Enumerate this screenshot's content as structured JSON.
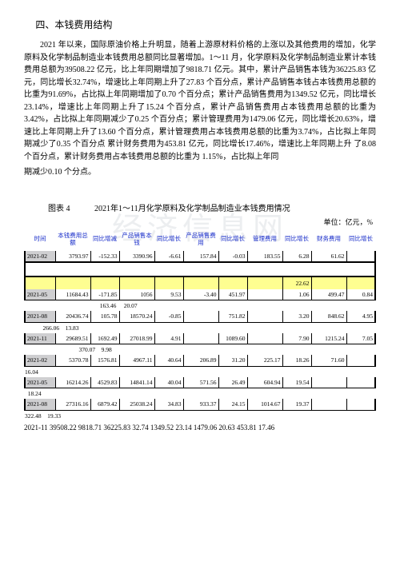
{
  "section_title": "四、本钱费用结构",
  "paragraph": "2021 年以来，国际原油价格上升明显，随着上游原材料价格的上涨以及其他费用的增加，化学原料及化学制品制造业本钱费用总额同比显著增加。1～11 月，化学原料及化学制品制造业累计本钱费用总额为39508.22 亿元，比上年同期增加了9818.71 亿元。其中，累计产品销售本钱为36225.83 亿元，同比增长32.74%，增速比上年同期上升了27.83 个百分点，累计产品销售本钱占本钱费用总额的比重为91.69%，占比拟上年同期增加了0.70 个百分点；累计产品销售费用为1349.52 亿元，同比增长 23.14%，增速比上年同期上升了15.24 个百分点，累计产品销售费用占本钱费用总额的比重为3.42%，占比拟上年同期减少了0.25 个百分点；累计管理费用为1479.06 亿元，同比增长20.63%，增速比上年同期上升了13.60 个百分点，累计管理费用占本钱费用总额的比重为3.74%，占比拟上年同期减少了0.35 个百分点 累计财务费用为453.81 亿元，同比增长17.46%，增速比上年同期上升 了8.08 个百分点，累计财务费用占本钱费用总额的比重为 1.15%，占比拟上年同",
  "paragraph_tail": "期减少0.10 个分点。",
  "watermark": "经济信息网",
  "chart": {
    "label": "图表  4",
    "title": "2021年1～11月化学原料及化学制品制造业本钱费用情况",
    "unit": "单位：亿元，%"
  },
  "table": {
    "headers": [
      "时间",
      "本钱费用总额",
      "同比增减",
      "产品销售本钱",
      "同比增长",
      "产品销售费用",
      "同比增长",
      "管理费用",
      "同比增长",
      "财务费用",
      "同比增长"
    ],
    "rows": [
      {
        "type": "data",
        "cells": [
          "2021-02",
          "3793.97",
          "-152.33",
          "3390.96",
          "-6.61",
          "157.84",
          "-0.03",
          "183.55",
          "6.28",
          "61.62",
          ""
        ]
      },
      {
        "type": "divider"
      },
      {
        "type": "highlight",
        "cells": [
          "",
          "",
          "",
          "",
          "",
          "",
          "",
          "",
          "22.62",
          "",
          ""
        ]
      },
      {
        "type": "data",
        "cells": [
          "2021-05",
          "11684.43",
          "-171.85",
          "1056",
          "9.53",
          "-3.40",
          "451.97",
          "",
          "1.06",
          "499.47",
          "0.84"
        ]
      },
      {
        "type": "wrap",
        "text": "                                                  163.46     20.07"
      },
      {
        "type": "data",
        "cells": [
          "2021-08",
          "20436.74",
          "105.78",
          "18570.24",
          "-0.85",
          "",
          "751.82",
          "",
          "3.20",
          "848.62",
          "4.95"
        ]
      },
      {
        "type": "wrap",
        "text": "            266.06    13.83"
      },
      {
        "type": "data",
        "cells": [
          "2021-11",
          "29689.51",
          "1692.49",
          "27018.99",
          "4.91",
          "",
          "1089.60",
          "",
          "7.90",
          "1215.24",
          "7.05"
        ]
      },
      {
        "type": "wrap",
        "text": "                                    370.07    9.98"
      },
      {
        "type": "data",
        "cells": [
          "2021-02",
          "5370.78",
          "1576.81",
          "4967.11",
          "40.64",
          "206.89",
          "31.20",
          "225.17",
          "18.26",
          "71.60",
          ""
        ]
      },
      {
        "type": "wrap",
        "text": "16.04"
      },
      {
        "type": "data",
        "cells": [
          "2021-05",
          "16214.26",
          "4529.83",
          "14841.14",
          "40.04",
          "571.56",
          "26.49",
          "604.94",
          "19.54",
          ""
        ]
      },
      {
        "type": "wrap",
        "text": "  18.24"
      },
      {
        "type": "data",
        "cells": [
          "2021-08",
          "27316.16",
          "6879.42",
          "25038.24",
          "34.83",
          "933.37",
          "24.15",
          "1014.67",
          "19.37",
          ""
        ]
      },
      {
        "type": "wrap",
        "text": "322.48    19.33"
      }
    ]
  },
  "bottom": "2021-11  39508.22    9818.71  36225.83   32.74   1349.52   23.14   1479.06   20.63 453.81   17.46"
}
